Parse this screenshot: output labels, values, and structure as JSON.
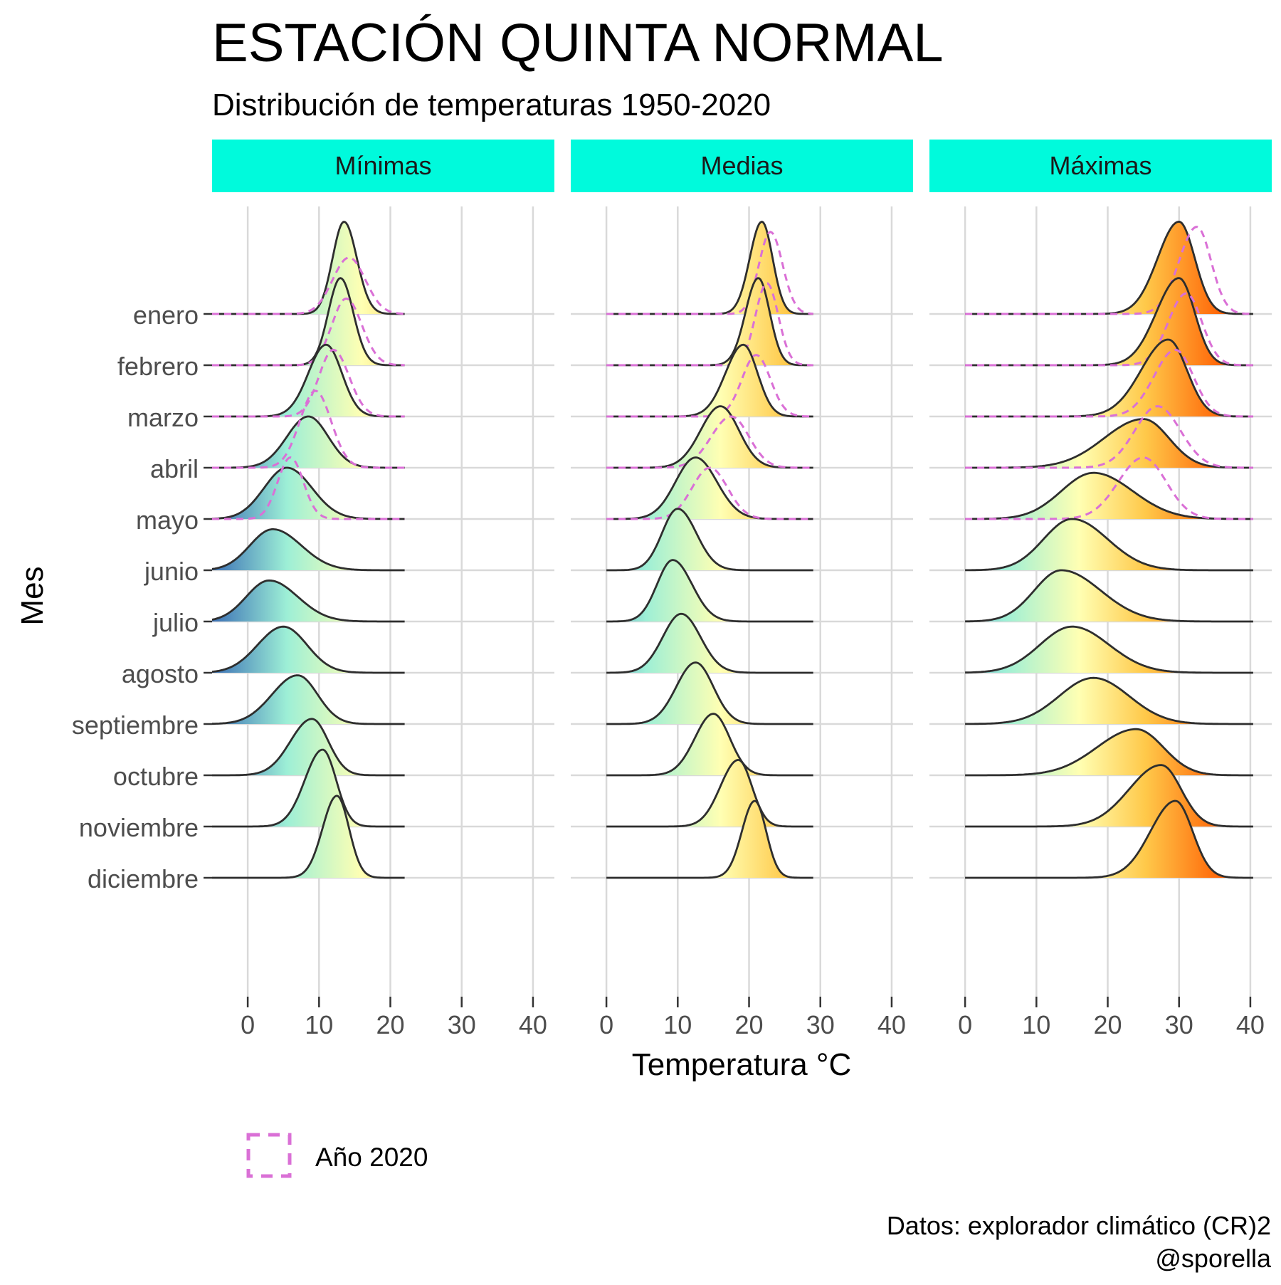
{
  "chart_data": {
    "type": "ridgeline",
    "title": "ESTACIÓN QUINTA NORMAL",
    "subtitle": "Distribución de temperaturas 1950-2020",
    "xlabel": "Temperatura °C",
    "ylabel": "Mes",
    "xlim": [
      -5,
      43
    ],
    "x_ticks": [
      0,
      10,
      20,
      30,
      40
    ],
    "grid": true,
    "legend": {
      "label": "Año 2020",
      "position": "bottom-left",
      "line_style": "dashed"
    },
    "caption": [
      "Datos: explorador climático (CR)2",
      "@sporella"
    ],
    "months": [
      "enero",
      "febrero",
      "marzo",
      "abril",
      "mayo",
      "junio",
      "julio",
      "agosto",
      "septiembre",
      "octubre",
      "noviembre",
      "diciembre"
    ],
    "panels": [
      {
        "name": "Mínimas",
        "x_range": [
          -5,
          22
        ],
        "ridges": [
          {
            "month": "enero",
            "peak": 13.5,
            "sd_left": 1.6,
            "sd_right": 1.8,
            "height": 1.8
          },
          {
            "month": "febrero",
            "peak": 13.0,
            "sd_left": 1.7,
            "sd_right": 1.8,
            "height": 1.7
          },
          {
            "month": "marzo",
            "peak": 11.0,
            "sd_left": 2.5,
            "sd_right": 2.2,
            "height": 1.4
          },
          {
            "month": "abril",
            "peak": 8.5,
            "sd_left": 3.0,
            "sd_right": 2.8,
            "height": 1.0
          },
          {
            "month": "mayo",
            "peak": 5.5,
            "sd_left": 3.2,
            "sd_right": 3.5,
            "height": 1.0
          },
          {
            "month": "junio",
            "peak": 3.5,
            "sd_left": 3.2,
            "sd_right": 4.0,
            "height": 0.8
          },
          {
            "month": "julio",
            "peak": 3.0,
            "sd_left": 3.2,
            "sd_right": 4.0,
            "height": 0.8
          },
          {
            "month": "agosto",
            "peak": 5.0,
            "sd_left": 3.6,
            "sd_right": 3.3,
            "height": 0.9
          },
          {
            "month": "septiembre",
            "peak": 7.0,
            "sd_left": 3.6,
            "sd_right": 2.8,
            "height": 0.95
          },
          {
            "month": "octubre",
            "peak": 9.0,
            "sd_left": 3.0,
            "sd_right": 2.3,
            "height": 1.1
          },
          {
            "month": "noviembre",
            "peak": 10.5,
            "sd_left": 2.5,
            "sd_right": 1.9,
            "height": 1.5
          },
          {
            "month": "diciembre",
            "peak": 12.5,
            "sd_left": 2.0,
            "sd_right": 1.7,
            "height": 1.6
          }
        ],
        "year_2020": [
          {
            "month": "enero",
            "peak": 14.2,
            "sd_left": 2.3,
            "sd_right": 2.3,
            "height": 1.1
          },
          {
            "month": "febrero",
            "peak": 13.8,
            "sd_left": 2.0,
            "sd_right": 2.2,
            "height": 1.3
          },
          {
            "month": "marzo",
            "peak": 12.0,
            "sd_left": 2.0,
            "sd_right": 2.2,
            "height": 1.3
          },
          {
            "month": "abril",
            "peak": 9.5,
            "sd_left": 2.2,
            "sd_right": 2.2,
            "height": 1.5
          },
          {
            "month": "mayo",
            "peak": 6.0,
            "sd_left": 1.8,
            "sd_right": 1.8,
            "height": 1.2
          }
        ]
      },
      {
        "name": "Medias",
        "x_range": [
          0,
          29
        ],
        "ridges": [
          {
            "month": "enero",
            "peak": 21.8,
            "sd_left": 1.7,
            "sd_right": 1.5,
            "height": 1.8
          },
          {
            "month": "febrero",
            "peak": 21.3,
            "sd_left": 1.8,
            "sd_right": 1.6,
            "height": 1.7
          },
          {
            "month": "marzo",
            "peak": 19.2,
            "sd_left": 2.5,
            "sd_right": 2.0,
            "height": 1.4
          },
          {
            "month": "abril",
            "peak": 16.0,
            "sd_left": 2.8,
            "sd_right": 2.6,
            "height": 1.2
          },
          {
            "month": "mayo",
            "peak": 12.5,
            "sd_left": 2.8,
            "sd_right": 3.0,
            "height": 1.2
          },
          {
            "month": "junio",
            "peak": 10.0,
            "sd_left": 2.2,
            "sd_right": 2.6,
            "height": 1.2
          },
          {
            "month": "julio",
            "peak": 9.3,
            "sd_left": 2.2,
            "sd_right": 2.7,
            "height": 1.2
          },
          {
            "month": "agosto",
            "peak": 10.5,
            "sd_left": 2.6,
            "sd_right": 2.7,
            "height": 1.15
          },
          {
            "month": "septiembre",
            "peak": 12.5,
            "sd_left": 2.7,
            "sd_right": 2.5,
            "height": 1.2
          },
          {
            "month": "octubre",
            "peak": 15.0,
            "sd_left": 2.6,
            "sd_right": 2.3,
            "height": 1.2
          },
          {
            "month": "noviembre",
            "peak": 18.5,
            "sd_left": 2.5,
            "sd_right": 1.9,
            "height": 1.3
          },
          {
            "month": "diciembre",
            "peak": 20.8,
            "sd_left": 1.8,
            "sd_right": 1.6,
            "height": 1.5
          }
        ],
        "year_2020": [
          {
            "month": "enero",
            "peak": 23.0,
            "sd_left": 1.6,
            "sd_right": 1.7,
            "height": 1.6
          },
          {
            "month": "febrero",
            "peak": 22.5,
            "sd_left": 1.6,
            "sd_right": 1.6,
            "height": 1.6
          },
          {
            "month": "marzo",
            "peak": 21.0,
            "sd_left": 2.0,
            "sd_right": 2.0,
            "height": 1.2
          },
          {
            "month": "abril",
            "peak": 17.5,
            "sd_left": 2.8,
            "sd_right": 2.5,
            "height": 1.0
          },
          {
            "month": "mayo",
            "peak": 14.5,
            "sd_left": 2.5,
            "sd_right": 2.5,
            "height": 1.0
          }
        ]
      },
      {
        "name": "Máximas",
        "x_range": [
          0,
          40.5
        ],
        "ridges": [
          {
            "month": "enero",
            "peak": 30.0,
            "sd_left": 3.0,
            "sd_right": 2.2,
            "height": 1.8
          },
          {
            "month": "febrero",
            "peak": 30.0,
            "sd_left": 3.2,
            "sd_right": 2.2,
            "height": 1.7
          },
          {
            "month": "marzo",
            "peak": 28.5,
            "sd_left": 3.8,
            "sd_right": 2.6,
            "height": 1.5
          },
          {
            "month": "abril",
            "peak": 25.0,
            "sd_left": 5.5,
            "sd_right": 3.6,
            "height": 0.95
          },
          {
            "month": "mayo",
            "peak": 18.0,
            "sd_left": 4.5,
            "sd_right": 5.5,
            "height": 0.9
          },
          {
            "month": "junio",
            "peak": 15.0,
            "sd_left": 4.0,
            "sd_right": 5.0,
            "height": 1.0
          },
          {
            "month": "julio",
            "peak": 13.5,
            "sd_left": 3.8,
            "sd_right": 5.5,
            "height": 1.0
          },
          {
            "month": "agosto",
            "peak": 15.0,
            "sd_left": 4.5,
            "sd_right": 5.2,
            "height": 0.9
          },
          {
            "month": "septiembre",
            "peak": 18.0,
            "sd_left": 4.8,
            "sd_right": 5.0,
            "height": 0.9
          },
          {
            "month": "octubre",
            "peak": 24.0,
            "sd_left": 5.5,
            "sd_right": 3.8,
            "height": 0.9
          },
          {
            "month": "noviembre",
            "peak": 27.5,
            "sd_left": 4.5,
            "sd_right": 2.8,
            "height": 1.2
          },
          {
            "month": "diciembre",
            "peak": 29.5,
            "sd_left": 3.5,
            "sd_right": 2.4,
            "height": 1.5
          }
        ],
        "year_2020": [
          {
            "month": "enero",
            "peak": 32.5,
            "sd_left": 2.5,
            "sd_right": 2.0,
            "height": 1.7
          },
          {
            "month": "febrero",
            "peak": 31.0,
            "sd_left": 2.5,
            "sd_right": 2.2,
            "height": 1.4
          },
          {
            "month": "marzo",
            "peak": 29.5,
            "sd_left": 3.0,
            "sd_right": 2.5,
            "height": 1.3
          },
          {
            "month": "abril",
            "peak": 27.0,
            "sd_left": 3.2,
            "sd_right": 3.2,
            "height": 1.2
          },
          {
            "month": "mayo",
            "peak": 25.0,
            "sd_left": 3.5,
            "sd_right": 3.2,
            "height": 1.2
          }
        ]
      }
    ]
  },
  "colors": {
    "strip": "#00FADC",
    "grid": "#D9D9D9",
    "ridge_outline": "#2E2E2E",
    "year_2020": "#DA70D6",
    "gradient": [
      "#3A6FB5",
      "#9DEFD6",
      "#FFFFB3",
      "#FFC94A",
      "#FF5A00"
    ]
  }
}
